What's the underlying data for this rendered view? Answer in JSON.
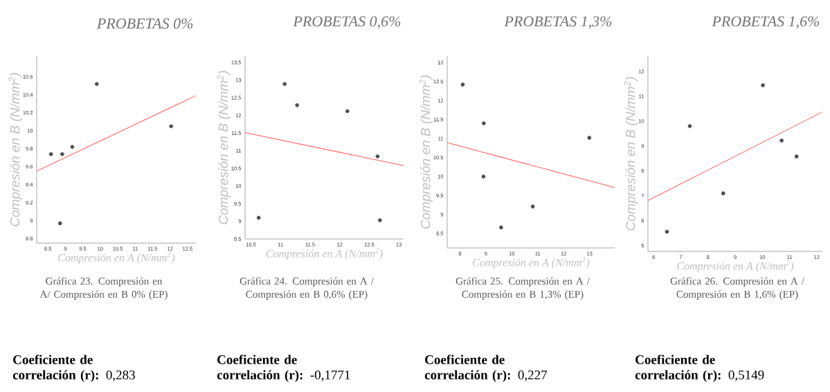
{
  "chart_data": [
    {
      "type": "scatter",
      "title": "PROBETAS 0%",
      "xlabel": "Compresión en A (N/mm$^{2}$)",
      "ylabel": "Compresión en B (N/mm$^{2}$)",
      "xlim": [
        8.18,
        12.74
      ],
      "ylim": [
        8.75,
        10.83
      ],
      "xticks": [
        8.5,
        9,
        9.5,
        10,
        10.5,
        11,
        11.5,
        12,
        12.5
      ],
      "yticks": [
        8.8,
        9,
        9.2,
        9.4,
        9.6,
        9.8,
        10,
        10.2,
        10.4,
        10.6
      ],
      "series": [
        {
          "color": "#4d4d4d",
          "x": [
            8.59,
            8.91,
            9.2,
            9.9,
            12.03,
            8.85
          ],
          "values": [
            9.74,
            9.74,
            9.82,
            10.52,
            10.05,
            8.97
          ]
        },
        {
          "type": "line",
          "color": "#ff5c5c",
          "line_style": "solid",
          "x": [
            8.18,
            12.74
          ],
          "values": [
            9.55,
            10.39
          ]
        }
      ],
      "annotations": [
        "Gráfica 23. Compresión en A/ Compresión en B 0% (EP)",
        "**Coeficiente de correlación (r):** 0,283"
      ]
    },
    {
      "type": "scatter",
      "title": "PROBETAS 0,6%",
      "xlabel": "Compresión en A (N/mm$^{2}$)",
      "ylabel": "Compresión en B (N/mm$^{2}$)",
      "xlim": [
        10.4,
        13.08
      ],
      "ylim": [
        8.5,
        13.68
      ],
      "xticks": [
        10.5,
        11,
        11.5,
        12,
        12.5,
        13
      ],
      "yticks": [
        8.5,
        9,
        9.5,
        10,
        10.5,
        11,
        11.5,
        12,
        12.5,
        13,
        13.5
      ],
      "series": [
        {
          "color": "#4d4d4d",
          "x": [
            10.63,
            11.07,
            11.28,
            12.13,
            12.64,
            12.68
          ],
          "values": [
            9.1,
            12.89,
            12.29,
            12.12,
            10.84,
            9.03
          ]
        },
        {
          "type": "line",
          "color": "#ff5c5c",
          "line_style": "solid",
          "x": [
            10.4,
            13.08
          ],
          "values": [
            11.51,
            10.58
          ]
        }
      ],
      "annotations": [
        "Gráfica 24. Compresión en A / Compresión en B 0,6% (EP)",
        "**Coeficiente de correlación (r):** -0,1771"
      ]
    },
    {
      "type": "scatter",
      "title": "PROBETAS 1,3%",
      "xlabel": "Compresión en A (N/mm$^{2}$)",
      "ylabel": "Compresión en B (N/mm$^{2}$)",
      "xlim": [
        7.51,
        13.97
      ],
      "ylim": [
        8.12,
        13.17
      ],
      "xticks": [
        8,
        9,
        10,
        11,
        12,
        13
      ],
      "yticks": [
        8.5,
        9,
        9.5,
        10,
        10.5,
        11,
        11.5,
        12,
        12.5,
        13
      ],
      "series": [
        {
          "color": "#4d4d4d",
          "x": [
            8.11,
            8.92,
            8.91,
            9.59,
            10.81,
            12.99
          ],
          "values": [
            12.42,
            11.4,
            10.0,
            8.66,
            9.21,
            11.02
          ]
        },
        {
          "type": "line",
          "color": "#ff5c5c",
          "line_style": "solid",
          "x": [
            7.51,
            13.97
          ],
          "values": [
            10.89,
            9.71
          ]
        }
      ],
      "annotations": [
        "Gráfica 25. Compresión en A / Compresión en B 1,3% (EP)",
        "**Coeficiente de correlación (r):** 0,227"
      ]
    },
    {
      "type": "scatter",
      "title": "PROBETAS 1,6%",
      "xlabel": "Compresión en A (N/mm$^{2}$)",
      "ylabel": "Compresión en B (N/mm$^{2}$)",
      "xlim": [
        5.79,
        12.21
      ],
      "ylim": [
        4.77,
        12.61
      ],
      "xticks": [
        6,
        7,
        8,
        9,
        10,
        11,
        12
      ],
      "yticks": [
        5,
        6,
        7,
        8,
        9,
        10,
        11,
        12
      ],
      "series": [
        {
          "color": "#4d4d4d",
          "x": [
            6.49,
            7.33,
            8.56,
            10.02,
            10.71,
            11.26
          ],
          "values": [
            5.56,
            9.8,
            7.1,
            11.44,
            9.22,
            8.58
          ]
        },
        {
          "type": "line",
          "color": "#ff5c5c",
          "line_style": "solid",
          "x": [
            5.79,
            12.21
          ],
          "values": [
            6.81,
            10.37
          ]
        }
      ],
      "annotations": [
        "Gráfica 26. Compresión en A / Compresión en B 1,6% (EP)",
        "**Coeficiente de correlación (r):** 0,5149"
      ]
    }
  ]
}
